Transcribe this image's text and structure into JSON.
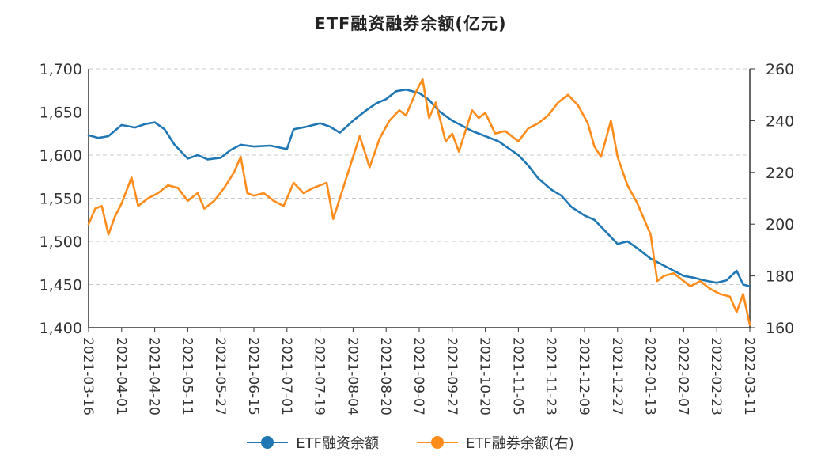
{
  "chart_data": {
    "type": "line",
    "title": "ETF融资融券余额(亿元)",
    "x_tick_labels": [
      "2021-03-16",
      "2021-04-01",
      "2021-04-20",
      "2021-05-11",
      "2021-05-27",
      "2021-06-15",
      "2021-07-01",
      "2021-07-19",
      "2021-08-04",
      "2021-08-20",
      "2021-09-07",
      "2021-09-27",
      "2021-10-20",
      "2021-11-05",
      "2021-11-23",
      "2021-12-09",
      "2021-12-27",
      "2022-01-13",
      "2022-02-07",
      "2022-02-23",
      "2022-03-11"
    ],
    "y_left": {
      "min": 1400,
      "max": 1700,
      "ticks": [
        "1,400",
        "1,450",
        "1,500",
        "1,550",
        "1,600",
        "1,650",
        "1,700"
      ]
    },
    "y_right": {
      "min": 160,
      "max": 260,
      "ticks": [
        "160",
        "180",
        "200",
        "220",
        "240",
        "260"
      ]
    },
    "grid": "horizontal-dashed",
    "legend_position": "bottom",
    "series": [
      {
        "name": "ETF融资余额",
        "axis": "left",
        "color": "#1f77b4",
        "points": [
          [
            0,
            1623
          ],
          [
            0.3,
            1620
          ],
          [
            0.6,
            1622
          ],
          [
            1,
            1635
          ],
          [
            1.4,
            1632
          ],
          [
            1.7,
            1636
          ],
          [
            2,
            1638
          ],
          [
            2.3,
            1630
          ],
          [
            2.6,
            1612
          ],
          [
            3,
            1596
          ],
          [
            3.3,
            1600
          ],
          [
            3.6,
            1595
          ],
          [
            4,
            1597
          ],
          [
            4.3,
            1606
          ],
          [
            4.6,
            1612
          ],
          [
            5,
            1610
          ],
          [
            5.5,
            1611
          ],
          [
            6,
            1607
          ],
          [
            6.2,
            1630
          ],
          [
            6.6,
            1633
          ],
          [
            7,
            1637
          ],
          [
            7.3,
            1633
          ],
          [
            7.6,
            1626
          ],
          [
            8,
            1640
          ],
          [
            8.4,
            1652
          ],
          [
            8.7,
            1660
          ],
          [
            9,
            1665
          ],
          [
            9.3,
            1674
          ],
          [
            9.6,
            1676
          ],
          [
            10,
            1672
          ],
          [
            10.3,
            1664
          ],
          [
            10.6,
            1651
          ],
          [
            11,
            1640
          ],
          [
            11.3,
            1634
          ],
          [
            11.6,
            1628
          ],
          [
            12,
            1622
          ],
          [
            12.4,
            1616
          ],
          [
            12.7,
            1608
          ],
          [
            13,
            1600
          ],
          [
            13.3,
            1588
          ],
          [
            13.6,
            1573
          ],
          [
            14,
            1560
          ],
          [
            14.3,
            1553
          ],
          [
            14.6,
            1540
          ],
          [
            15,
            1530
          ],
          [
            15.3,
            1525
          ],
          [
            15.6,
            1513
          ],
          [
            16,
            1497
          ],
          [
            16.3,
            1500
          ],
          [
            16.6,
            1492
          ],
          [
            17,
            1480
          ],
          [
            17.3,
            1474
          ],
          [
            17.6,
            1468
          ],
          [
            18,
            1460
          ],
          [
            18.3,
            1458
          ],
          [
            18.6,
            1455
          ],
          [
            19,
            1452
          ],
          [
            19.3,
            1455
          ],
          [
            19.6,
            1466
          ],
          [
            19.8,
            1450
          ],
          [
            20,
            1448
          ]
        ]
      },
      {
        "name": "ETF融券余额(右)",
        "axis": "right",
        "color": "#ff8c1a",
        "points": [
          [
            0,
            200
          ],
          [
            0.2,
            206
          ],
          [
            0.4,
            207
          ],
          [
            0.6,
            196
          ],
          [
            0.8,
            203
          ],
          [
            1,
            208
          ],
          [
            1.3,
            218
          ],
          [
            1.5,
            207
          ],
          [
            1.8,
            210
          ],
          [
            2.1,
            212
          ],
          [
            2.4,
            215
          ],
          [
            2.7,
            214
          ],
          [
            3,
            209
          ],
          [
            3.3,
            212
          ],
          [
            3.5,
            206
          ],
          [
            3.8,
            209
          ],
          [
            4.1,
            214
          ],
          [
            4.4,
            220
          ],
          [
            4.6,
            226
          ],
          [
            4.8,
            212
          ],
          [
            5,
            211
          ],
          [
            5.3,
            212
          ],
          [
            5.6,
            209
          ],
          [
            5.9,
            207
          ],
          [
            6.2,
            216
          ],
          [
            6.5,
            212
          ],
          [
            6.8,
            214
          ],
          [
            7.2,
            216
          ],
          [
            7.4,
            202
          ],
          [
            7.6,
            210
          ],
          [
            7.9,
            222
          ],
          [
            8.2,
            234
          ],
          [
            8.5,
            222
          ],
          [
            8.8,
            233
          ],
          [
            9.1,
            240
          ],
          [
            9.4,
            244
          ],
          [
            9.6,
            242
          ],
          [
            9.9,
            251
          ],
          [
            10.1,
            256
          ],
          [
            10.3,
            241
          ],
          [
            10.5,
            247
          ],
          [
            10.8,
            232
          ],
          [
            11,
            235
          ],
          [
            11.2,
            228
          ],
          [
            11.4,
            236
          ],
          [
            11.6,
            244
          ],
          [
            11.8,
            241
          ],
          [
            12,
            243
          ],
          [
            12.3,
            235
          ],
          [
            12.6,
            236
          ],
          [
            13,
            232
          ],
          [
            13.3,
            237
          ],
          [
            13.6,
            239
          ],
          [
            13.9,
            242
          ],
          [
            14.2,
            247
          ],
          [
            14.5,
            250
          ],
          [
            14.8,
            246
          ],
          [
            15.1,
            239
          ],
          [
            15.3,
            230
          ],
          [
            15.5,
            226
          ],
          [
            15.8,
            240
          ],
          [
            16,
            226
          ],
          [
            16.3,
            215
          ],
          [
            16.6,
            208
          ],
          [
            16.8,
            202
          ],
          [
            17,
            196
          ],
          [
            17.2,
            178
          ],
          [
            17.4,
            180
          ],
          [
            17.7,
            181
          ],
          [
            18,
            178
          ],
          [
            18.2,
            176
          ],
          [
            18.5,
            178
          ],
          [
            18.8,
            175
          ],
          [
            19.1,
            173
          ],
          [
            19.4,
            172
          ],
          [
            19.6,
            166
          ],
          [
            19.8,
            173
          ],
          [
            20,
            161
          ]
        ]
      }
    ]
  },
  "legend": {
    "items": [
      {
        "label": "ETF融资余额",
        "color": "#1f77b4"
      },
      {
        "label": "ETF融券余额(右)",
        "color": "#ff8c1a"
      }
    ]
  }
}
